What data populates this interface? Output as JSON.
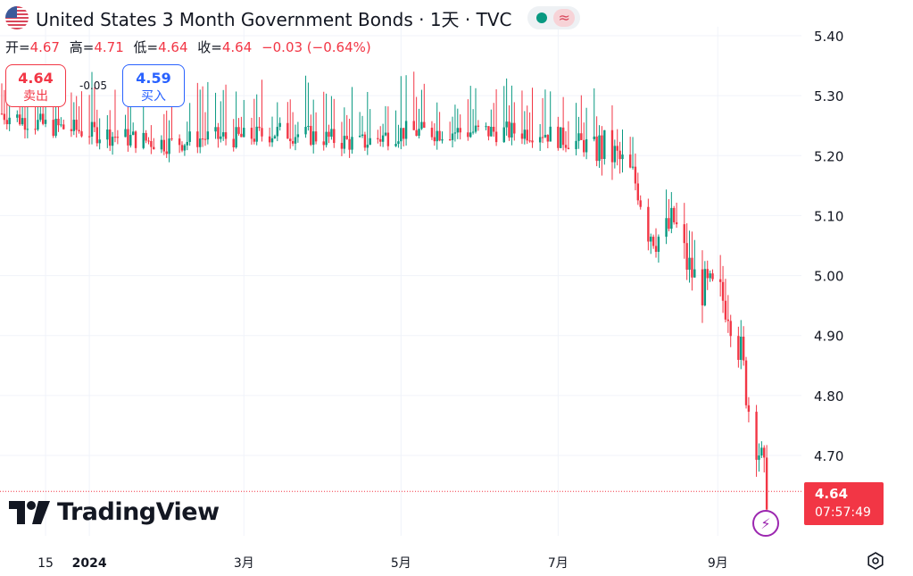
{
  "header": {
    "title": "United States 3 Month Government Bonds · 1天 · TVC",
    "flag_icon": "us-flag-icon",
    "status_dot_color": "#089981",
    "wave_symbol": "≈"
  },
  "ohlc": {
    "open_label": "开=",
    "open": "4.67",
    "high_label": "高=",
    "high": "4.71",
    "low_label": "低=",
    "low": "4.64",
    "close_label": "收=",
    "close": "4.64",
    "change": "−0.03 (−0.64%)"
  },
  "trade": {
    "sell_price": "4.64",
    "sell_label": "卖出",
    "spread": "-0.05",
    "buy_price": "4.59",
    "buy_label": "买入"
  },
  "last_price": {
    "value": "4.64",
    "countdown": "07:57:49"
  },
  "logo": {
    "text": "TradingView"
  },
  "colors": {
    "up": "#089981",
    "down": "#f23645",
    "grid": "#f0f3fa",
    "axis_text": "#131722"
  },
  "chart_data": {
    "type": "line",
    "title": "United States 3 Month Government Bonds",
    "xlabel": "",
    "ylabel": "",
    "ylim": [
      4.62,
      5.44
    ],
    "y_ticks": [
      "5.40",
      "5.30",
      "5.20",
      "5.10",
      "5.00",
      "4.90",
      "4.80",
      "4.70"
    ],
    "x_ticks": [
      "15",
      "2024",
      "3月",
      "5月",
      "7月",
      "9月"
    ],
    "x_tick_dates": [
      "2023-12-15",
      "2024-01-01",
      "2024-03-01",
      "2024-05-01",
      "2024-07-01",
      "2024-09-01"
    ],
    "x_range": [
      "2023-11-28",
      "2024-09-21"
    ],
    "grid": true,
    "series": [
      {
        "x": [
          "2023-11-28",
          "2023-12-15",
          "2024-01-01",
          "2024-01-15",
          "2024-02-01",
          "2024-02-15",
          "2024-03-01",
          "2024-03-15",
          "2024-04-01",
          "2024-04-15",
          "2024-05-01",
          "2024-05-15",
          "2024-06-01",
          "2024-06-15",
          "2024-06-25",
          "2024-07-01",
          "2024-07-10",
          "2024-07-20",
          "2024-07-25",
          "2024-08-01",
          "2024-08-05",
          "2024-08-10",
          "2024-08-15",
          "2024-08-20",
          "2024-08-25",
          "2024-09-01",
          "2024-09-05",
          "2024-09-10",
          "2024-09-13",
          "2024-09-17",
          "2024-09-20"
        ],
        "values": [
          5.27,
          5.25,
          5.24,
          5.23,
          5.22,
          5.23,
          5.23,
          5.24,
          5.23,
          5.22,
          5.24,
          5.24,
          5.24,
          5.24,
          5.24,
          5.23,
          5.22,
          5.21,
          5.19,
          5.15,
          5.08,
          5.06,
          5.09,
          5.02,
          4.98,
          4.97,
          4.95,
          4.87,
          4.78,
          4.71,
          4.64
        ]
      }
    ]
  }
}
